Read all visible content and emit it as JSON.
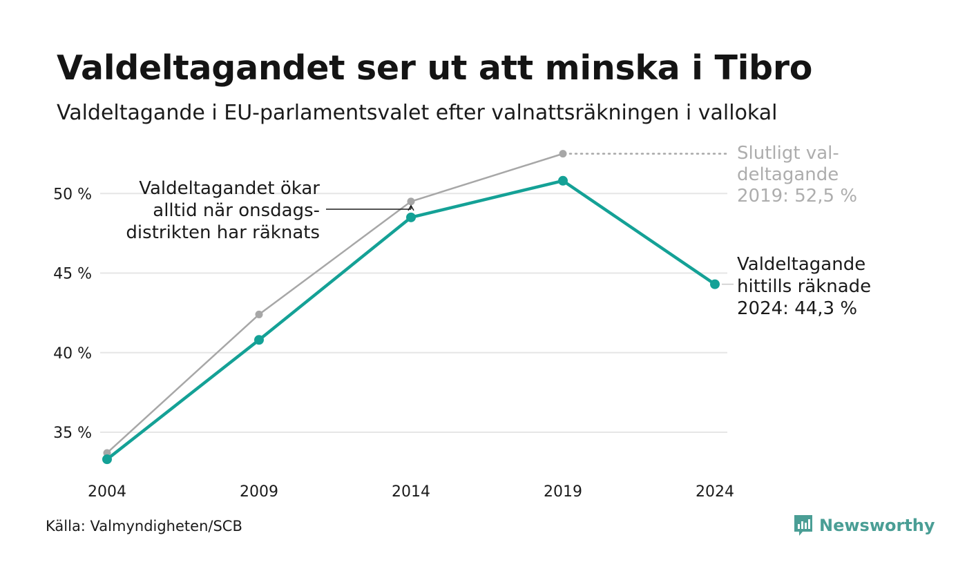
{
  "header": {
    "title": "Valdeltagandet ser ut att minska i Tibro",
    "subtitle": "Valdeltagande i EU-parlamentsvalet efter valnattsräkningen i vallokal"
  },
  "footer": {
    "source": "Källa: Valmyndigheten/SCB",
    "brand": "Newsworthy",
    "brand_icon": "newsworthy-logo-icon"
  },
  "colors": {
    "main_series": "#14a196",
    "final_series": "#a7a7a7",
    "grid": "#e6e6e6",
    "annotation_text": "#1a1a1a",
    "muted_text": "#adadad"
  },
  "chart_data": {
    "type": "line",
    "x": [
      2004,
      2009,
      2014,
      2019,
      2024
    ],
    "x_tick_labels": [
      "2004",
      "2009",
      "2014",
      "2019",
      "2024"
    ],
    "y_ticks": [
      35,
      40,
      45,
      50
    ],
    "y_tick_labels": [
      "35 %",
      "40 %",
      "45 %",
      "50 %"
    ],
    "ylim": [
      33,
      52.5
    ],
    "grid": true,
    "series": [
      {
        "key": "main",
        "values": [
          33.3,
          40.8,
          48.5,
          50.8,
          44.3
        ]
      },
      {
        "key": "final",
        "values": [
          33.7,
          42.4,
          49.5,
          52.5,
          null
        ]
      }
    ],
    "annotations": {
      "onsdag": [
        "Valdeltagandet ökar",
        "alltid när onsdags-",
        "distrikten har räknats"
      ],
      "final_2019": [
        "Slutligt val-",
        "deltagande",
        "2019: 52,5 %"
      ],
      "current_2024": [
        "Valdeltagande",
        "hittills räknade",
        "2024: 44,3 %"
      ]
    }
  }
}
